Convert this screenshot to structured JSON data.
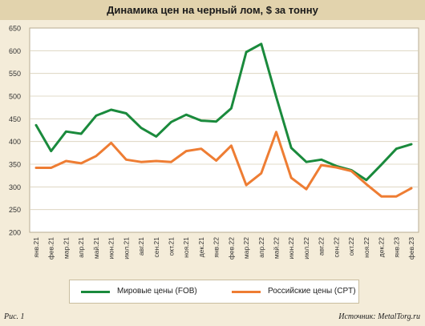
{
  "chart_data": {
    "type": "line",
    "title": "Динамика цен на черный лом, $ за тонну",
    "categories": [
      "янв.21",
      "фев.21",
      "мар.21",
      "апр.21",
      "май.21",
      "июн.21",
      "июл.21",
      "авг.21",
      "сен.21",
      "окт.21",
      "ноя.21",
      "дек.21",
      "янв.22",
      "фев.22",
      "мар.22",
      "апр.22",
      "май.22",
      "июн.22",
      "июл.22",
      "авг.22",
      "сен.22",
      "окт.22",
      "ноя.22",
      "дек.22",
      "янв.23",
      "фев.23"
    ],
    "ylim": [
      200,
      650
    ],
    "yticks": [
      "200",
      "250",
      "300",
      "350",
      "400",
      "450",
      "500",
      "550",
      "600",
      "650"
    ],
    "grid": true,
    "legend_position": "bottom",
    "series": [
      {
        "name": "Мировые цены (FOB)",
        "color": "#1a8a3c",
        "values": [
          436,
          379,
          422,
          417,
          457,
          470,
          462,
          430,
          411,
          443,
          459,
          446,
          444,
          473,
          597,
          615,
          498,
          386,
          355,
          360,
          346,
          337,
          315,
          349,
          384,
          394
        ]
      },
      {
        "name": "Российские цены (CPT)",
        "color": "#ee7d33",
        "values": [
          342,
          342,
          357,
          352,
          368,
          397,
          360,
          355,
          357,
          355,
          379,
          384,
          358,
          391,
          304,
          330,
          421,
          320,
          295,
          348,
          343,
          335,
          306,
          279,
          279,
          297
        ]
      }
    ]
  },
  "footer": {
    "figure_label": "Рис. 1",
    "source": "Источник: MetalTorg.ru"
  }
}
